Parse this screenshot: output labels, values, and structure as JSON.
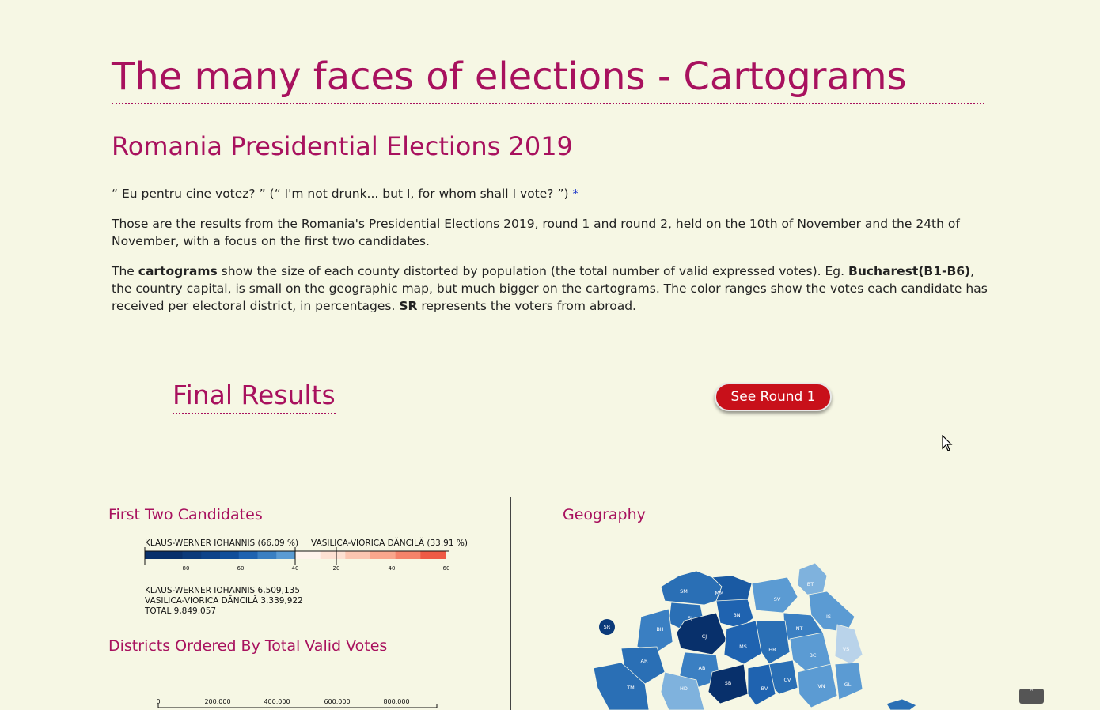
{
  "header": {
    "title": "The many faces of elections - Cartograms",
    "subtitle": "Romania Presidential Elections 2019"
  },
  "intro": {
    "quote": "“ Eu pentru cine votez? ” (“ I'm not drunk... but I, for whom shall I vote? ”)",
    "quote_star": "*",
    "p1": "Those are the results from the Romania's Presidential Elections 2019, round 1 and round 2, held on the 10th of November and the 24th of November, with a focus on the first two candidates.",
    "p2_a": "The ",
    "p2_b": "cartograms",
    "p2_c": " show the size of each county distorted by population (the total number of valid expressed votes). Eg. ",
    "p2_d": "Bucharest(B1-B6)",
    "p2_e": ", the country capital, is small on the geographic map, but much bigger on the cartograms. The color ranges show the votes each candidate has received per electoral district, in percentages. ",
    "p2_f": "SR",
    "p2_g": " represents the voters from abroad."
  },
  "results": {
    "title": "Final Results",
    "round_button": "See Round 1"
  },
  "candidates": {
    "title": "First Two Candidates",
    "left_label": "KLAUS-WERNER IOHANNIS (66.09 %)",
    "right_label": "VASILICA-VIORICA DĂNCILĂ (33.91 %)",
    "ticks": [
      "80",
      "60",
      "40",
      "20",
      "40",
      "60"
    ],
    "totals": [
      "KLAUS-WERNER IOHANNIS 6,509,135",
      "VASILICA-VIORICA DĂNCILĂ 3,339,922",
      "TOTAL 9,849,057"
    ],
    "blue_scale": [
      "#08306b",
      "#08306b",
      "#0b3a7a",
      "#0e4389",
      "#104e99",
      "#1f63b0",
      "#3a7fc2",
      "#5b9bd3"
    ],
    "red_scale": [
      "#fff3ec",
      "#fde0d2",
      "#fcc5b0",
      "#f9a68c",
      "#f5836a",
      "#ef5a45"
    ]
  },
  "districts": {
    "title": "Districts Ordered By Total Valid Votes",
    "axis_ticks": [
      "0",
      "200,000",
      "400,000",
      "600,000",
      "800,000"
    ]
  },
  "geography": {
    "title": "Geography",
    "regions": [
      "SM",
      "MM",
      "SJ",
      "BN",
      "BH",
      "CJ",
      "SV",
      "BT",
      "IS",
      "NT",
      "MS",
      "HR",
      "BC",
      "VS",
      "AR",
      "AB",
      "SB",
      "CV",
      "BV",
      "VN",
      "GL",
      "TM",
      "HD",
      "SR"
    ],
    "high_color": "#08306b",
    "mid_color": "#2a6fb5",
    "low_color": "#7fb2dd"
  },
  "scroll_top": "˄"
}
